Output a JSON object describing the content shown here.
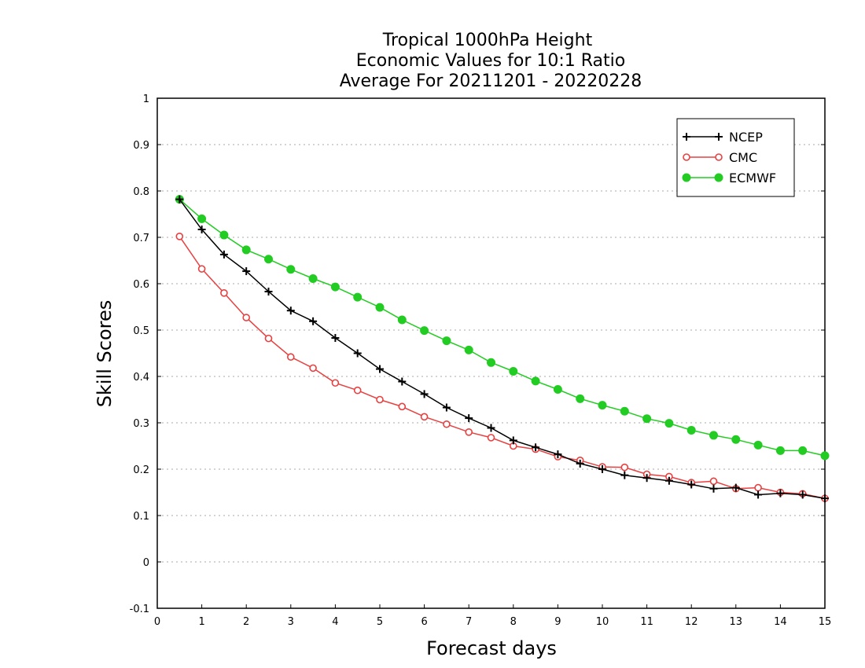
{
  "chart_data": {
    "type": "line",
    "title_lines": [
      "Tropical 1000hPa Height",
      "Economic Values for 10:1 Ratio",
      "Average For 20211201 - 20220228"
    ],
    "xlabel": "Forecast days",
    "ylabel": "Skill Scores",
    "xlim": [
      0,
      15
    ],
    "ylim": [
      -0.1,
      1
    ],
    "xticks": [
      0,
      1,
      2,
      3,
      4,
      5,
      6,
      7,
      8,
      9,
      10,
      11,
      12,
      13,
      14,
      15
    ],
    "yticks": [
      -0.1,
      0,
      0.1,
      0.2,
      0.3,
      0.4,
      0.5,
      0.6,
      0.7,
      0.8,
      0.9,
      1
    ],
    "ytick_labels": [
      "-0.1",
      "0",
      "0.1",
      "0.2",
      "0.3",
      "0.4",
      "0.5",
      "0.6",
      "0.7",
      "0.8",
      "0.9",
      "1"
    ],
    "grid": "horizontal dotted",
    "legend_position": "top-right",
    "x": [
      0.5,
      1,
      1.5,
      2,
      2.5,
      3,
      3.5,
      4,
      4.5,
      5,
      5.5,
      6,
      6.5,
      7,
      7.5,
      8,
      8.5,
      9,
      9.5,
      10,
      10.5,
      11,
      11.5,
      12,
      12.5,
      13,
      13.5,
      14,
      14.5,
      15
    ],
    "series": [
      {
        "name": "NCEP",
        "color": "#000000",
        "marker": "plus",
        "values": [
          0.782,
          0.717,
          0.663,
          0.627,
          0.583,
          0.542,
          0.519,
          0.483,
          0.45,
          0.416,
          0.389,
          0.362,
          0.333,
          0.31,
          0.289,
          0.262,
          0.247,
          0.232,
          0.212,
          0.2,
          0.187,
          0.181,
          0.175,
          0.167,
          0.158,
          0.16,
          0.145,
          0.148,
          0.145,
          0.137
        ]
      },
      {
        "name": "CMC",
        "color": "#e84040",
        "marker": "open-circle",
        "values": [
          0.702,
          0.632,
          0.58,
          0.527,
          0.482,
          0.442,
          0.418,
          0.386,
          0.37,
          0.35,
          0.335,
          0.313,
          0.297,
          0.28,
          0.268,
          0.25,
          0.243,
          0.227,
          0.219,
          0.205,
          0.204,
          0.189,
          0.184,
          0.171,
          0.174,
          0.158,
          0.16,
          0.15,
          0.147,
          0.137
        ]
      },
      {
        "name": "ECMWF",
        "color": "#22cc22",
        "marker": "filled-circle",
        "values": [
          0.782,
          0.74,
          0.705,
          0.673,
          0.653,
          0.631,
          0.611,
          0.593,
          0.571,
          0.549,
          0.522,
          0.499,
          0.477,
          0.457,
          0.43,
          0.411,
          0.39,
          0.372,
          0.352,
          0.338,
          0.325,
          0.309,
          0.299,
          0.284,
          0.273,
          0.264,
          0.252,
          0.24,
          0.24,
          0.229
        ]
      }
    ]
  }
}
